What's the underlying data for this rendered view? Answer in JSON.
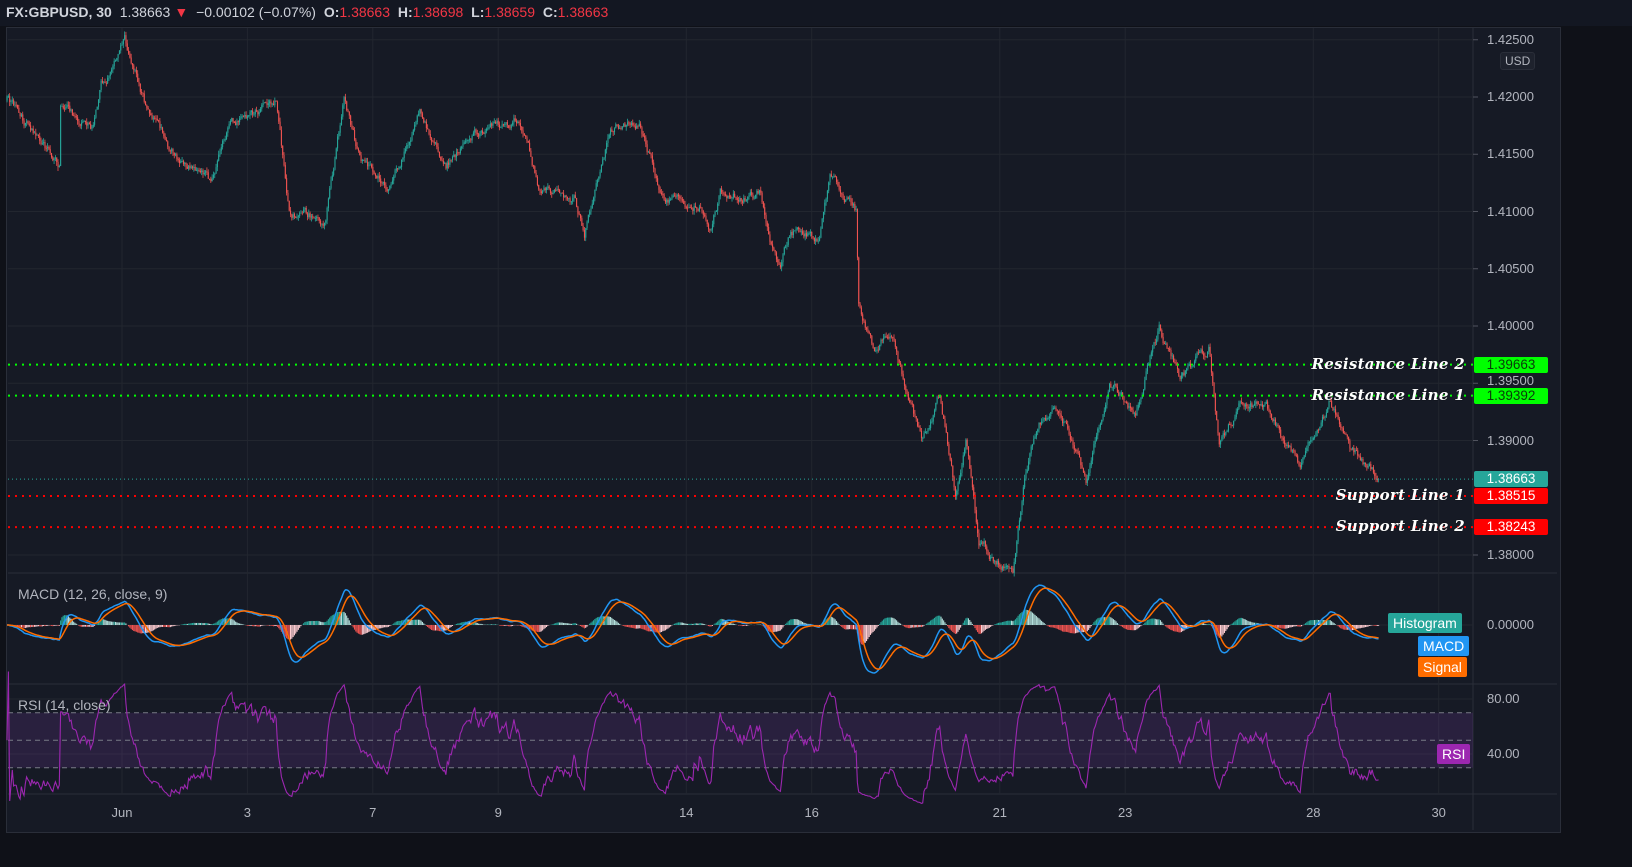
{
  "header": {
    "symbol": "FX:GBPUSD, 30",
    "last": "1.38663",
    "direction_icon": "triangle-down-icon",
    "change": "−0.00102 (−0.07%)",
    "open_label": "O:",
    "open": "1.38663",
    "high_label": "H:",
    "high": "1.38698",
    "low_label": "L:",
    "low": "1.38659",
    "close_label": "C:",
    "close": "1.38663"
  },
  "axis": {
    "currency": "USD",
    "price_ticks": [
      "1.42500",
      "1.42000",
      "1.41500",
      "1.41000",
      "1.40500",
      "1.40000",
      "1.39500",
      "1.39000",
      "1.38000"
    ],
    "time_ticks": [
      {
        "label": "Jun",
        "date": "06-01"
      },
      {
        "label": "3",
        "date": "06-03"
      },
      {
        "label": "7",
        "date": "06-07"
      },
      {
        "label": "9",
        "date": "06-09"
      },
      {
        "label": "14",
        "date": "06-14"
      },
      {
        "label": "16",
        "date": "06-16"
      },
      {
        "label": "21",
        "date": "06-21"
      },
      {
        "label": "23",
        "date": "06-23"
      },
      {
        "label": "28",
        "date": "06-28"
      },
      {
        "label": "30",
        "date": "06-30"
      }
    ]
  },
  "current_price": {
    "value": "1.38663",
    "color": "#26a69a"
  },
  "levels": [
    {
      "label": "Resistance Line 2",
      "price": "1.39663",
      "color": "#00ff00"
    },
    {
      "label": "Resistance Line 1",
      "price": "1.39392",
      "color": "#00ff00"
    },
    {
      "label": "Support Line 1",
      "price": "1.38515",
      "color": "#ff0000"
    },
    {
      "label": "Support Line 2",
      "price": "1.38243",
      "color": "#ff0000"
    }
  ],
  "macd": {
    "title": "MACD (12, 26, close, 9)",
    "zero_tick": "0.00000",
    "legend": [
      {
        "label": "Histogram",
        "color": "#26a69a"
      },
      {
        "label": "MACD",
        "color": "#2196f3"
      },
      {
        "label": "Signal",
        "color": "#ff6d00"
      }
    ]
  },
  "rsi": {
    "title": "RSI (14, close)",
    "ticks": [
      "80.00",
      "40.00"
    ],
    "bands": [
      70,
      50,
      30
    ],
    "legend": {
      "label": "RSI",
      "color": "#9c27b0"
    }
  },
  "chart_data": {
    "type": "candlestick",
    "symbol": "FX:GBPUSD",
    "interval": "30",
    "ylim": [
      1.3775,
      1.4265
    ],
    "up_color": "#26a69a",
    "down_color": "#ef5350",
    "approx_close_path": [
      [
        "05-28 04:00",
        1.4197
      ],
      [
        "05-31 00:15",
        1.4141
      ],
      [
        "05-31 00:30",
        1.4193
      ],
      [
        "05-31 12:00",
        1.4171
      ],
      [
        "05-31 16:00",
        1.421
      ],
      [
        "06-01 01:00",
        1.4245
      ],
      [
        "06-01 09:00",
        1.4193
      ],
      [
        "06-01 20:00",
        1.4149
      ],
      [
        "06-02 10:00",
        1.4123
      ],
      [
        "06-02 17:00",
        1.4171
      ],
      [
        "06-03 11:00",
        1.4197
      ],
      [
        "06-03 16:00",
        1.4097
      ],
      [
        "06-04 06:00",
        1.4093
      ],
      [
        "06-04 13:00",
        1.4197
      ],
      [
        "06-04 19:00",
        1.4145
      ],
      [
        "06-07 06:00",
        1.4123
      ],
      [
        "06-07 18:00",
        1.4184
      ],
      [
        "06-08 04:00",
        1.4145
      ],
      [
        "06-08 13:00",
        1.4162
      ],
      [
        "06-09 08:00",
        1.4184
      ],
      [
        "06-09 16:00",
        1.4119
      ],
      [
        "06-10 05:00",
        1.411
      ],
      [
        "06-10 09:00",
        1.4079
      ],
      [
        "06-10 19:00",
        1.4176
      ],
      [
        "06-11 06:00",
        1.4176
      ],
      [
        "06-11 16:00",
        1.4106
      ],
      [
        "06-14 05:00",
        1.411
      ],
      [
        "06-14 09:00",
        1.4079
      ],
      [
        "06-14 13:00",
        1.4115
      ],
      [
        "06-15 04:00",
        1.4115
      ],
      [
        "06-15 12:00",
        1.4049
      ],
      [
        "06-15 16:00",
        1.4084
      ],
      [
        "06-16 03:00",
        1.4079
      ],
      [
        "06-16 07:00",
        1.4123
      ],
      [
        "06-16 17:00",
        1.4101
      ],
      [
        "06-16 18:00",
        1.4023
      ],
      [
        "06-17 00:00",
        1.3975
      ],
      [
        "06-17 06:00",
        1.3997
      ],
      [
        "06-17 12:00",
        1.3944
      ],
      [
        "06-17 18:00",
        1.39
      ],
      [
        "06-18 01:00",
        1.394
      ],
      [
        "06-18 07:00",
        1.3857
      ],
      [
        "06-18 11:00",
        1.3905
      ],
      [
        "06-18 16:00",
        1.3809
      ],
      [
        "06-21 00:00",
        1.3796
      ],
      [
        "06-21 05:00",
        1.3787
      ],
      [
        "06-21 10:00",
        1.3874
      ],
      [
        "06-21 15:00",
        1.3918
      ],
      [
        "06-21 23:00",
        1.3931
      ],
      [
        "06-22 09:00",
        1.3861
      ],
      [
        "06-22 18:00",
        1.3953
      ],
      [
        "06-23 04:00",
        1.3927
      ],
      [
        "06-23 13:00",
        1.3997
      ],
      [
        "06-23 21:00",
        1.3957
      ],
      [
        "06-24 08:00",
        1.3979
      ],
      [
        "06-24 12:00",
        1.3892
      ],
      [
        "06-24 20:00",
        1.3931
      ],
      [
        "06-25 06:00",
        1.3927
      ],
      [
        "06-25 19:00",
        1.3874
      ],
      [
        "06-28 06:00",
        1.3935
      ],
      [
        "06-28 14:00",
        1.3892
      ],
      [
        "06-29 01:00",
        1.38663
      ]
    ]
  }
}
